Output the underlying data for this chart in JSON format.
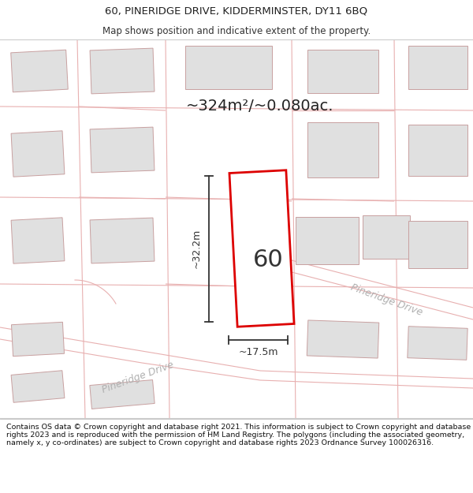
{
  "title_line1": "60, PINERIDGE DRIVE, KIDDERMINSTER, DY11 6BQ",
  "title_line2": "Map shows position and indicative extent of the property.",
  "area_text": "~324m²/~0.080ac.",
  "label_60": "60",
  "dim_height": "~32.2m",
  "dim_width": "~17.5m",
  "road_label_bl": "Pineridge Drive",
  "road_label_tr": "Pineridge Drive",
  "copyright_text": "Contains OS data © Crown copyright and database right 2021. This information is subject to Crown copyright and database rights 2023 and is reproduced with the permission of HM Land Registry. The polygons (including the associated geometry, namely x, y co-ordinates) are subject to Crown copyright and database rights 2023 Ordnance Survey 100026316.",
  "map_bg": "#ffffff",
  "plot_color": "#dd0000",
  "block_color": "#e0e0e0",
  "block_border": "#c8a0a0",
  "road_line_color": "#e8b0b0",
  "plot_border_lw": 2.0,
  "title_fontsize": 9.5,
  "subtitle_fontsize": 8.5,
  "area_fontsize": 14,
  "label_fontsize": 22,
  "dim_fontsize": 9,
  "road_fontsize": 9,
  "footer_fontsize": 6.8
}
